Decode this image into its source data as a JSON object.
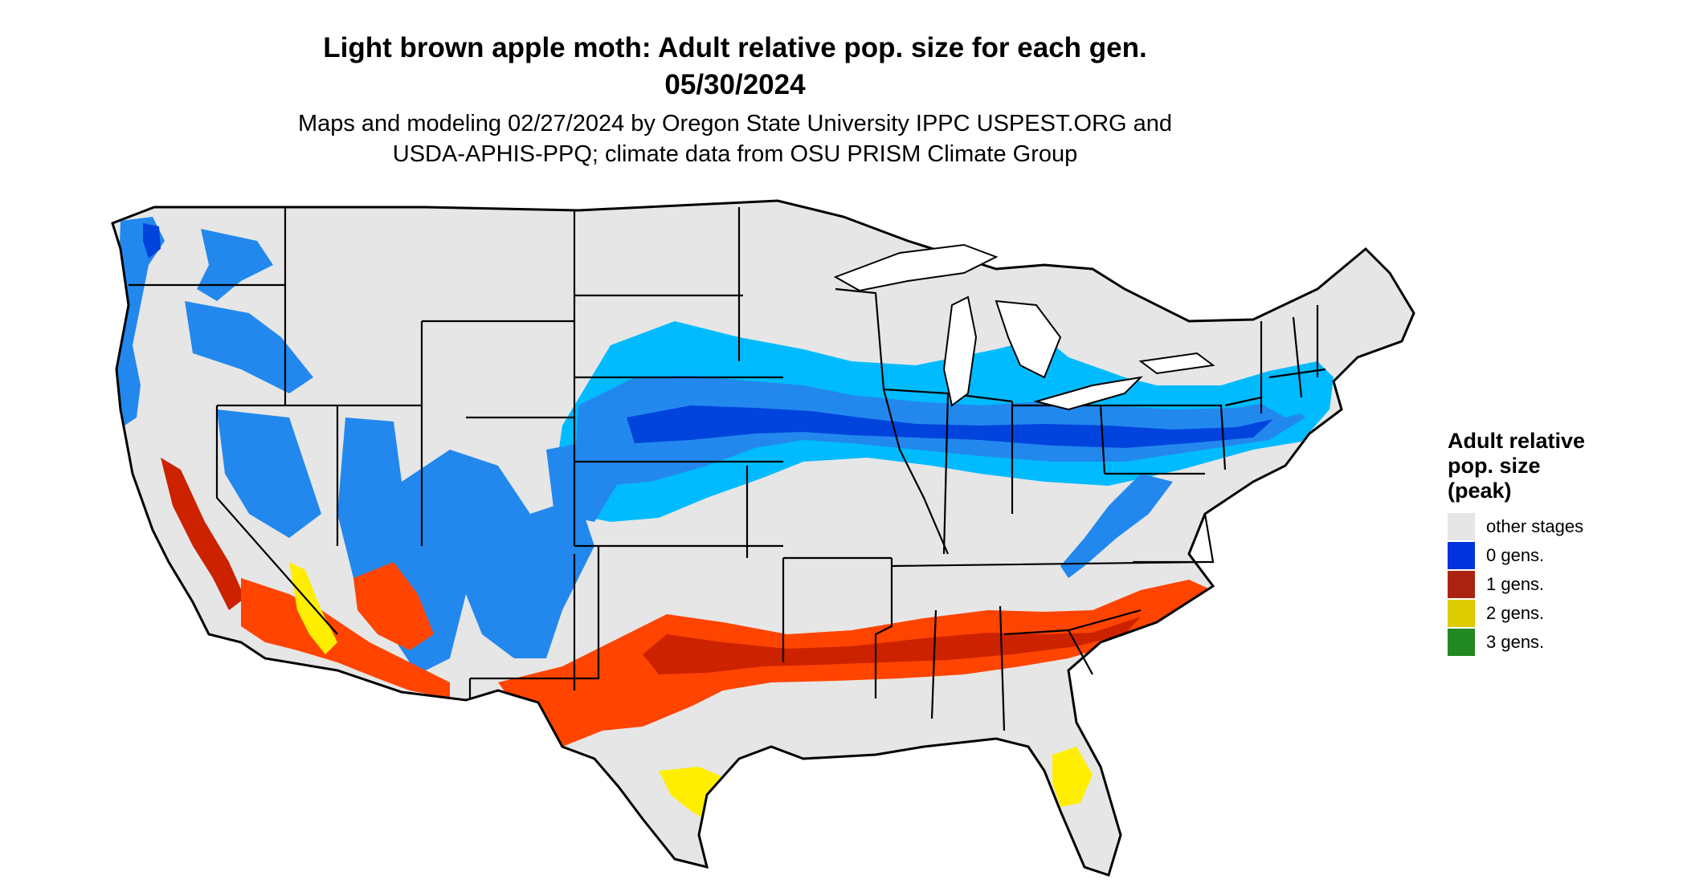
{
  "title_line1": "Light brown apple moth: Adult relative pop. size for each gen.",
  "title_line2": "05/30/2024",
  "subtitle_line1": "Maps and modeling 02/27/2024 by Oregon State University IPPC USPEST.ORG and",
  "subtitle_line2": "USDA-APHIS-PPQ; climate data from OSU PRISM Climate Group",
  "legend": {
    "title_line1": "Adult relative",
    "title_line2": "pop. size",
    "title_line3": "(peak)",
    "items": [
      {
        "label": "other stages",
        "color": "#e6e6e6"
      },
      {
        "label": "0 gens.",
        "color": "#0033dd"
      },
      {
        "label": "1 gens.",
        "color": "#aa2211"
      },
      {
        "label": "2 gens.",
        "color": "#ddcc00"
      },
      {
        "label": "3 gens.",
        "color": "#228822"
      }
    ]
  },
  "map_colors": {
    "land": "#e6e6e6",
    "zero_light": "#00bbff",
    "zero_mid": "#2288ee",
    "zero_dark": "#0044dd",
    "one_light": "#ff4400",
    "one_dark": "#cc2200",
    "two": "#ffee00",
    "three": "#33aa33",
    "border": "#000000"
  }
}
